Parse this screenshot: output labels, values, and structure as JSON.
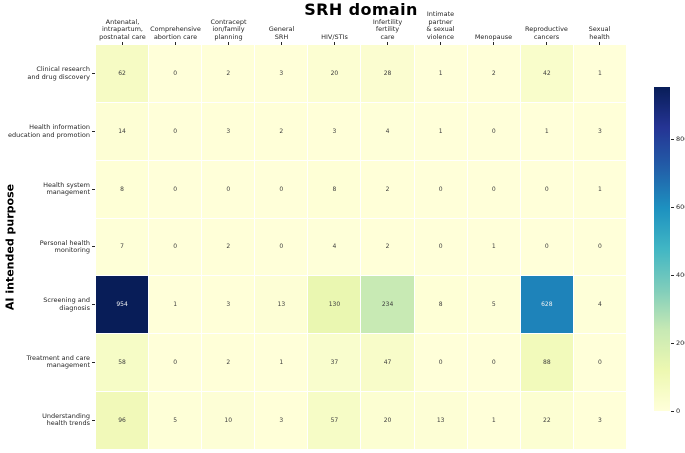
{
  "chart_data": {
    "type": "heatmap",
    "title": "SRH domain",
    "ylabel": "AI intended purpose",
    "xlabel_position": "top",
    "grid": false,
    "legend_position": "right-colorbar",
    "colormap": {
      "name": "YlGnBu",
      "stops": [
        {
          "pos": 0.0,
          "color": "#ffffd9"
        },
        {
          "pos": 0.125,
          "color": "#edf8b1"
        },
        {
          "pos": 0.25,
          "color": "#c7e9b4"
        },
        {
          "pos": 0.375,
          "color": "#7fcdbb"
        },
        {
          "pos": 0.5,
          "color": "#41b6c4"
        },
        {
          "pos": 0.625,
          "color": "#1d91c0"
        },
        {
          "pos": 0.75,
          "color": "#225ea8"
        },
        {
          "pos": 0.875,
          "color": "#253494"
        },
        {
          "pos": 1.0,
          "color": "#081d58"
        }
      ]
    },
    "vmin": 0,
    "vmax": 954,
    "colorbar_ticks": [
      0,
      200,
      400,
      600,
      800
    ],
    "annot_color_light_cell": "#3d3d3d",
    "annot_color_dark_cell": "#f2f2f2",
    "categories": [
      "Antenatal,\nintrapartum,\npostnatal care",
      "Comprehensive\nabortion care",
      "Contracept\nion/family\nplanning",
      "General\nSRH",
      "HIV/STIs",
      "Infertility\nfertility\ncare",
      "Intimate\npartner\n& sexual\nviolence",
      "Menopause",
      "Reproductive\ncancers",
      "Sexual\nhealth"
    ],
    "rows": [
      "Clinical research\nand drug discovery",
      "Health information\neducation and promotion",
      "Health system\nmanagement",
      "Personal health\nmonitoring",
      "Screening and\ndiagnosis",
      "Treatment and care\nmanagement",
      "Understanding\nhealth trends"
    ],
    "values": [
      [
        62,
        0,
        2,
        3,
        20,
        28,
        1,
        2,
        42,
        1
      ],
      [
        14,
        0,
        3,
        2,
        3,
        4,
        1,
        0,
        1,
        3
      ],
      [
        8,
        0,
        0,
        0,
        8,
        2,
        0,
        0,
        0,
        1
      ],
      [
        7,
        0,
        2,
        0,
        4,
        2,
        0,
        1,
        0,
        0
      ],
      [
        954,
        1,
        3,
        13,
        130,
        234,
        8,
        5,
        628,
        4
      ],
      [
        58,
        0,
        2,
        1,
        37,
        47,
        0,
        0,
        88,
        0
      ],
      [
        96,
        5,
        10,
        3,
        57,
        20,
        13,
        1,
        22,
        3
      ]
    ]
  }
}
